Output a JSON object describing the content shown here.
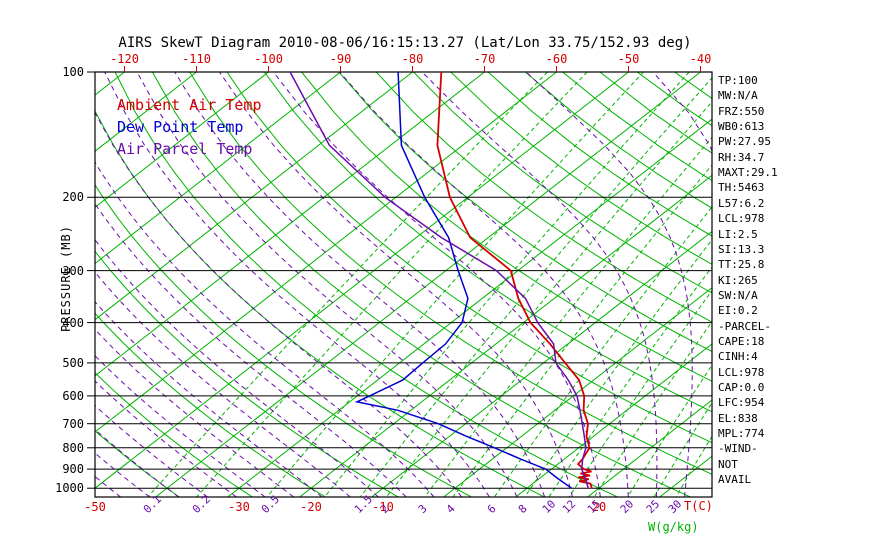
{
  "title": "AIRS SkewT Diagram 2010-08-06/16:15:13.27 (Lat/Lon 33.75/152.93 deg)",
  "colors": {
    "temp": "#d40000",
    "dew": "#0000cf",
    "parcel": "#6a0dad",
    "isotherm": "#00b400",
    "dry_adiabat": "#00b400",
    "mixing_ratio": "#00b400",
    "moist_adiabat": "#6a0dad",
    "axis": "#000000"
  },
  "left_axis": {
    "label": "PRESSURE (MB)",
    "unit": "MB",
    "ticks": [
      100,
      200,
      300,
      400,
      500,
      600,
      700,
      800,
      900,
      1000
    ]
  },
  "top_axis": {
    "labels": [
      -120,
      -110,
      -100,
      -90,
      -80,
      -70,
      -60,
      -50,
      -40
    ]
  },
  "legend": {
    "items": [
      {
        "label": "Ambient Air Temp",
        "color": "temp"
      },
      {
        "label": "Dew Point Temp",
        "color": "dew"
      },
      {
        "label": "Air Parcel Temp",
        "color": "parcel"
      }
    ]
  },
  "stats_panel": {
    "lines": [
      "TP:100",
      "MW:N/A",
      "FRZ:550",
      "WB0:613",
      "PW:27.95",
      "RH:34.7",
      "MAXT:29.1",
      "TH:5463",
      "L57:6.2",
      "LCL:978",
      "LI:2.5",
      "SI:13.3",
      "TT:25.8",
      "KI:265",
      "SW:N/A",
      "EI:0.2",
      "-PARCEL-",
      "CAPE:18",
      "CINH:4",
      "LCL:978",
      "CAP:0.0",
      "LFC:954",
      "EL:838",
      "MPL:774",
      "-WIND-",
      "NOT",
      "AVAIL"
    ]
  },
  "bottom_axis": {
    "temp_labels": [
      -50,
      -30,
      -20,
      -10,
      20
    ],
    "temp_unit": "T(C)",
    "mixing_labels": [
      0.1,
      0.2,
      0.5,
      1.5,
      2,
      3,
      4,
      6,
      8,
      10,
      12,
      15,
      20,
      25,
      30
    ],
    "mixing_unit": "W(g/kg)"
  },
  "chart_data": {
    "type": "line",
    "projection": "skew-t-log-p",
    "title": "AIRS SkewT Diagram 2010-08-06/16:15:13.27 (Lat/Lon 33.75/152.93 deg)",
    "pressure_axis": {
      "unit": "MB",
      "min": 100,
      "max": 1050,
      "ticks": [
        100,
        200,
        300,
        400,
        500,
        600,
        700,
        800,
        900,
        1000
      ]
    },
    "temp_axis": {
      "unit": "C",
      "top_labels": [
        -120,
        -110,
        -100,
        -90,
        -80,
        -70,
        -60,
        -50,
        -40
      ],
      "bottom_labels": [
        -50,
        -30,
        -20,
        -10,
        20
      ]
    },
    "series": [
      {
        "name": "Ambient Air Temp",
        "color": "temp",
        "style": "solid",
        "points": [
          [
            100,
            -76
          ],
          [
            150,
            -63.5
          ],
          [
            200,
            -52.5
          ],
          [
            250,
            -42.5
          ],
          [
            300,
            -31
          ],
          [
            350,
            -25
          ],
          [
            400,
            -19
          ],
          [
            450,
            -12.5
          ],
          [
            500,
            -7
          ],
          [
            550,
            -2
          ],
          [
            600,
            1.5
          ],
          [
            650,
            4
          ],
          [
            700,
            7
          ],
          [
            750,
            9
          ],
          [
            800,
            11.5
          ],
          [
            850,
            12.5
          ],
          [
            875,
            12.8
          ],
          [
            900,
            14.5
          ],
          [
            912,
            16
          ],
          [
            922,
            14.8
          ],
          [
            932,
            16.5
          ],
          [
            942,
            15.2
          ],
          [
            952,
            17
          ],
          [
            962,
            16
          ],
          [
            975,
            18
          ],
          [
            1000,
            19
          ]
        ]
      },
      {
        "name": "Dew Point Temp",
        "color": "dew",
        "style": "solid",
        "points": [
          [
            100,
            -82
          ],
          [
            150,
            -68.5
          ],
          [
            200,
            -56
          ],
          [
            250,
            -45.5
          ],
          [
            300,
            -38.3
          ],
          [
            350,
            -32
          ],
          [
            400,
            -28.5
          ],
          [
            450,
            -27
          ],
          [
            500,
            -26.8
          ],
          [
            550,
            -26.5
          ],
          [
            600,
            -28.3
          ],
          [
            620,
            -29
          ],
          [
            650,
            -21.8
          ],
          [
            700,
            -13.8
          ],
          [
            750,
            -7.7
          ],
          [
            800,
            -1.7
          ],
          [
            850,
            3.8
          ],
          [
            900,
            9.2
          ],
          [
            950,
            12.7
          ],
          [
            1000,
            16.2
          ]
        ]
      },
      {
        "name": "Air Parcel Temp",
        "color": "parcel",
        "style": "solid",
        "points": [
          [
            100,
            -97
          ],
          [
            150,
            -78.5
          ],
          [
            200,
            -61.5
          ],
          [
            250,
            -46.5
          ],
          [
            300,
            -33
          ],
          [
            350,
            -24
          ],
          [
            400,
            -18
          ],
          [
            450,
            -12
          ],
          [
            500,
            -8.3
          ],
          [
            550,
            -3.5
          ],
          [
            600,
            0.5
          ],
          [
            650,
            3.5
          ],
          [
            700,
            6.2
          ],
          [
            750,
            8.7
          ],
          [
            800,
            11
          ],
          [
            850,
            12.5
          ],
          [
            900,
            14.2
          ],
          [
            950,
            16.5
          ],
          [
            1000,
            18.5
          ]
        ]
      }
    ],
    "background": {
      "isotherms_c": {
        "min": -120,
        "max": 30,
        "step": 10
      },
      "dry_adiabats_c": {
        "min": -40,
        "max": 200,
        "step": 10
      },
      "moist_adiabats_c": {
        "min": -56,
        "max": 36,
        "step": 4
      },
      "mixing_ratio_g_kg": [
        0.1,
        0.2,
        0.5,
        1,
        1.5,
        2,
        3,
        4,
        6,
        8,
        10,
        12,
        15,
        20,
        25,
        30
      ]
    }
  }
}
